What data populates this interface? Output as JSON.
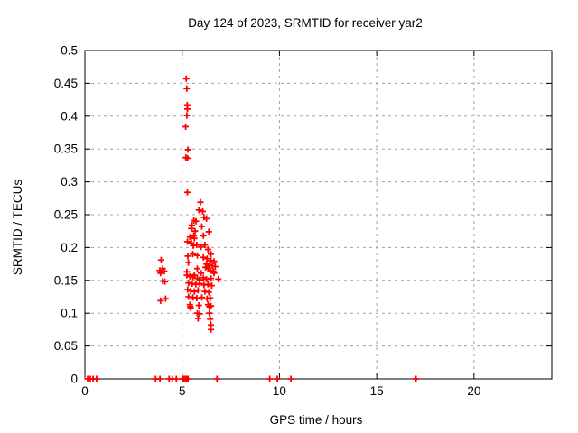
{
  "window": {
    "background_color": "#ffffff"
  },
  "chart_data": {
    "type": "scatter",
    "title": "Day 124 of 2023, SRMTID for receiver yar2",
    "xlabel": "GPS time / hours",
    "ylabel": "SRMTID / TECUs",
    "xlim": [
      0,
      24
    ],
    "ylim": [
      0,
      0.5
    ],
    "xticks": {
      "values": [
        0,
        5,
        10,
        15,
        20
      ],
      "labels": [
        "0",
        "5",
        "10",
        "15",
        "20"
      ]
    },
    "yticks": {
      "values": [
        0,
        0.05,
        0.1,
        0.15,
        0.2,
        0.25,
        0.3,
        0.35,
        0.4,
        0.45,
        0.5
      ],
      "labels": [
        "0",
        "0.05",
        "0.1",
        "0.15",
        "0.2",
        "0.25",
        "0.3",
        "0.35",
        "0.4",
        "0.45",
        "0.5"
      ]
    },
    "grid": true,
    "legend_position": "none",
    "marker": {
      "shape": "plus",
      "color": "#ff0000",
      "size": 7
    },
    "colors": {
      "axis": "#000000",
      "grid": "#a0a0a0",
      "text": "#000000",
      "background": "#ffffff"
    },
    "series": [
      {
        "name": "SRMTID",
        "points": [
          [
            0.14,
            0
          ],
          [
            0.28,
            0
          ],
          [
            0.42,
            0
          ],
          [
            0.6,
            0
          ],
          [
            3.63,
            0
          ],
          [
            3.86,
            0
          ],
          [
            4.33,
            0
          ],
          [
            4.49,
            0
          ],
          [
            4.7,
            0
          ],
          [
            5.02,
            0
          ],
          [
            5.08,
            0
          ],
          [
            5.16,
            0
          ],
          [
            5.23,
            0
          ],
          [
            5.3,
            0
          ],
          [
            6.79,
            0
          ],
          [
            9.5,
            0
          ],
          [
            9.89,
            0
          ],
          [
            10.59,
            0
          ],
          [
            17.02,
            0
          ],
          [
            5.21,
            0.457
          ],
          [
            5.24,
            0.442
          ],
          [
            5.26,
            0.417
          ],
          [
            5.27,
            0.411
          ],
          [
            5.24,
            0.401
          ],
          [
            5.18,
            0.384
          ],
          [
            5.3,
            0.349
          ],
          [
            5.19,
            0.337
          ],
          [
            5.28,
            0.336
          ],
          [
            5.27,
            0.284
          ],
          [
            5.94,
            0.269
          ],
          [
            3.92,
            0.181
          ],
          [
            3.85,
            0.165
          ],
          [
            4.0,
            0.168
          ],
          [
            3.89,
            0.161
          ],
          [
            4.08,
            0.164
          ],
          [
            4.0,
            0.149
          ],
          [
            4.11,
            0.148
          ],
          [
            4.15,
            0.122
          ],
          [
            3.89,
            0.119
          ],
          [
            5.86,
            0.257
          ],
          [
            6.06,
            0.255
          ],
          [
            6.12,
            0.246
          ],
          [
            6.25,
            0.244
          ],
          [
            5.6,
            0.241
          ],
          [
            5.71,
            0.24
          ],
          [
            5.5,
            0.234
          ],
          [
            6.01,
            0.232
          ],
          [
            5.47,
            0.229
          ],
          [
            5.66,
            0.225
          ],
          [
            6.37,
            0.224
          ],
          [
            5.6,
            0.218
          ],
          [
            6.09,
            0.218
          ],
          [
            5.4,
            0.216
          ],
          [
            5.63,
            0.214
          ],
          [
            5.27,
            0.209
          ],
          [
            5.47,
            0.207
          ],
          [
            5.75,
            0.204
          ],
          [
            6.17,
            0.204
          ],
          [
            5.57,
            0.203
          ],
          [
            5.97,
            0.201
          ],
          [
            6.33,
            0.197
          ],
          [
            5.55,
            0.19
          ],
          [
            6.48,
            0.19
          ],
          [
            5.78,
            0.188
          ],
          [
            5.29,
            0.187
          ],
          [
            6.09,
            0.185
          ],
          [
            6.28,
            0.183
          ],
          [
            6.48,
            0.18
          ],
          [
            6.64,
            0.179
          ],
          [
            5.32,
            0.177
          ],
          [
            6.25,
            0.175
          ],
          [
            6.4,
            0.173
          ],
          [
            6.55,
            0.172
          ],
          [
            6.7,
            0.171
          ],
          [
            6.2,
            0.17
          ],
          [
            5.78,
            0.168
          ],
          [
            6.33,
            0.168
          ],
          [
            6.45,
            0.165
          ],
          [
            6.6,
            0.164
          ],
          [
            5.24,
            0.163
          ],
          [
            5.97,
            0.161
          ],
          [
            6.64,
            0.161
          ],
          [
            5.63,
            0.158
          ],
          [
            5.24,
            0.158
          ],
          [
            5.4,
            0.156
          ],
          [
            5.55,
            0.155
          ],
          [
            6.09,
            0.154
          ],
          [
            5.78,
            0.153
          ],
          [
            6.48,
            0.153
          ],
          [
            6.25,
            0.152
          ],
          [
            6.86,
            0.152
          ],
          [
            5.9,
            0.151
          ],
          [
            5.33,
            0.146
          ],
          [
            5.51,
            0.145
          ],
          [
            5.9,
            0.145
          ],
          [
            5.7,
            0.144
          ],
          [
            6.33,
            0.144
          ],
          [
            6.12,
            0.143
          ],
          [
            6.52,
            0.142
          ],
          [
            5.28,
            0.136
          ],
          [
            5.82,
            0.135
          ],
          [
            5.44,
            0.134
          ],
          [
            5.63,
            0.133
          ],
          [
            6.17,
            0.133
          ],
          [
            6.37,
            0.132
          ],
          [
            5.33,
            0.125
          ],
          [
            5.55,
            0.124
          ],
          [
            6.01,
            0.124
          ],
          [
            6.44,
            0.123
          ],
          [
            5.75,
            0.123
          ],
          [
            6.28,
            0.122
          ],
          [
            5.4,
            0.113
          ],
          [
            6.33,
            0.113
          ],
          [
            5.86,
            0.112
          ],
          [
            6.48,
            0.111
          ],
          [
            5.42,
            0.11
          ],
          [
            6.4,
            0.11
          ],
          [
            5.44,
            0.108
          ],
          [
            5.78,
            0.1
          ],
          [
            6.4,
            0.1
          ],
          [
            5.9,
            0.099
          ],
          [
            5.82,
            0.092
          ],
          [
            6.44,
            0.091
          ],
          [
            6.48,
            0.082
          ],
          [
            6.48,
            0.075
          ]
        ]
      }
    ]
  }
}
